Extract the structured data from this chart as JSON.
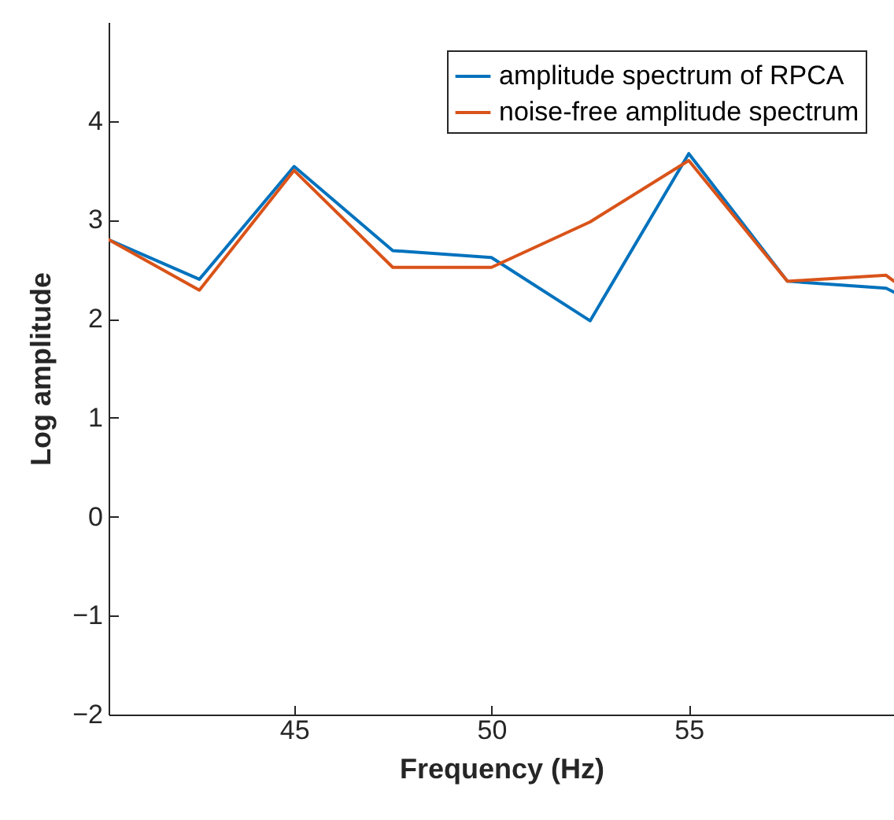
{
  "chart_data": {
    "type": "line",
    "xlabel": "Frequency (Hz)",
    "ylabel": "Log amplitude",
    "x": [
      40.3,
      42.6,
      45.0,
      47.5,
      50.0,
      52.5,
      55.0,
      57.5,
      60.0,
      60.2
    ],
    "series": [
      {
        "name": "amplitude spectrum of RPCA",
        "color": "#0072bd",
        "values": [
          2.8,
          2.4,
          3.54,
          2.69,
          2.62,
          1.98,
          3.67,
          2.38,
          2.31,
          2.27
        ]
      },
      {
        "name": "noise-free amplitude spectrum",
        "color": "#d95319",
        "values": [
          2.8,
          2.29,
          3.5,
          2.52,
          2.52,
          2.98,
          3.6,
          2.38,
          2.44,
          2.38
        ]
      }
    ],
    "xlim": [
      40.3,
      60.2
    ],
    "xticks": [
      45,
      50,
      55
    ],
    "ylim": [
      -2,
      5
    ],
    "yticks": [
      -2,
      -1,
      0,
      1,
      2,
      3,
      4
    ],
    "legend": "top right",
    "grid": false,
    "line_style": "solid",
    "marker": "none"
  }
}
